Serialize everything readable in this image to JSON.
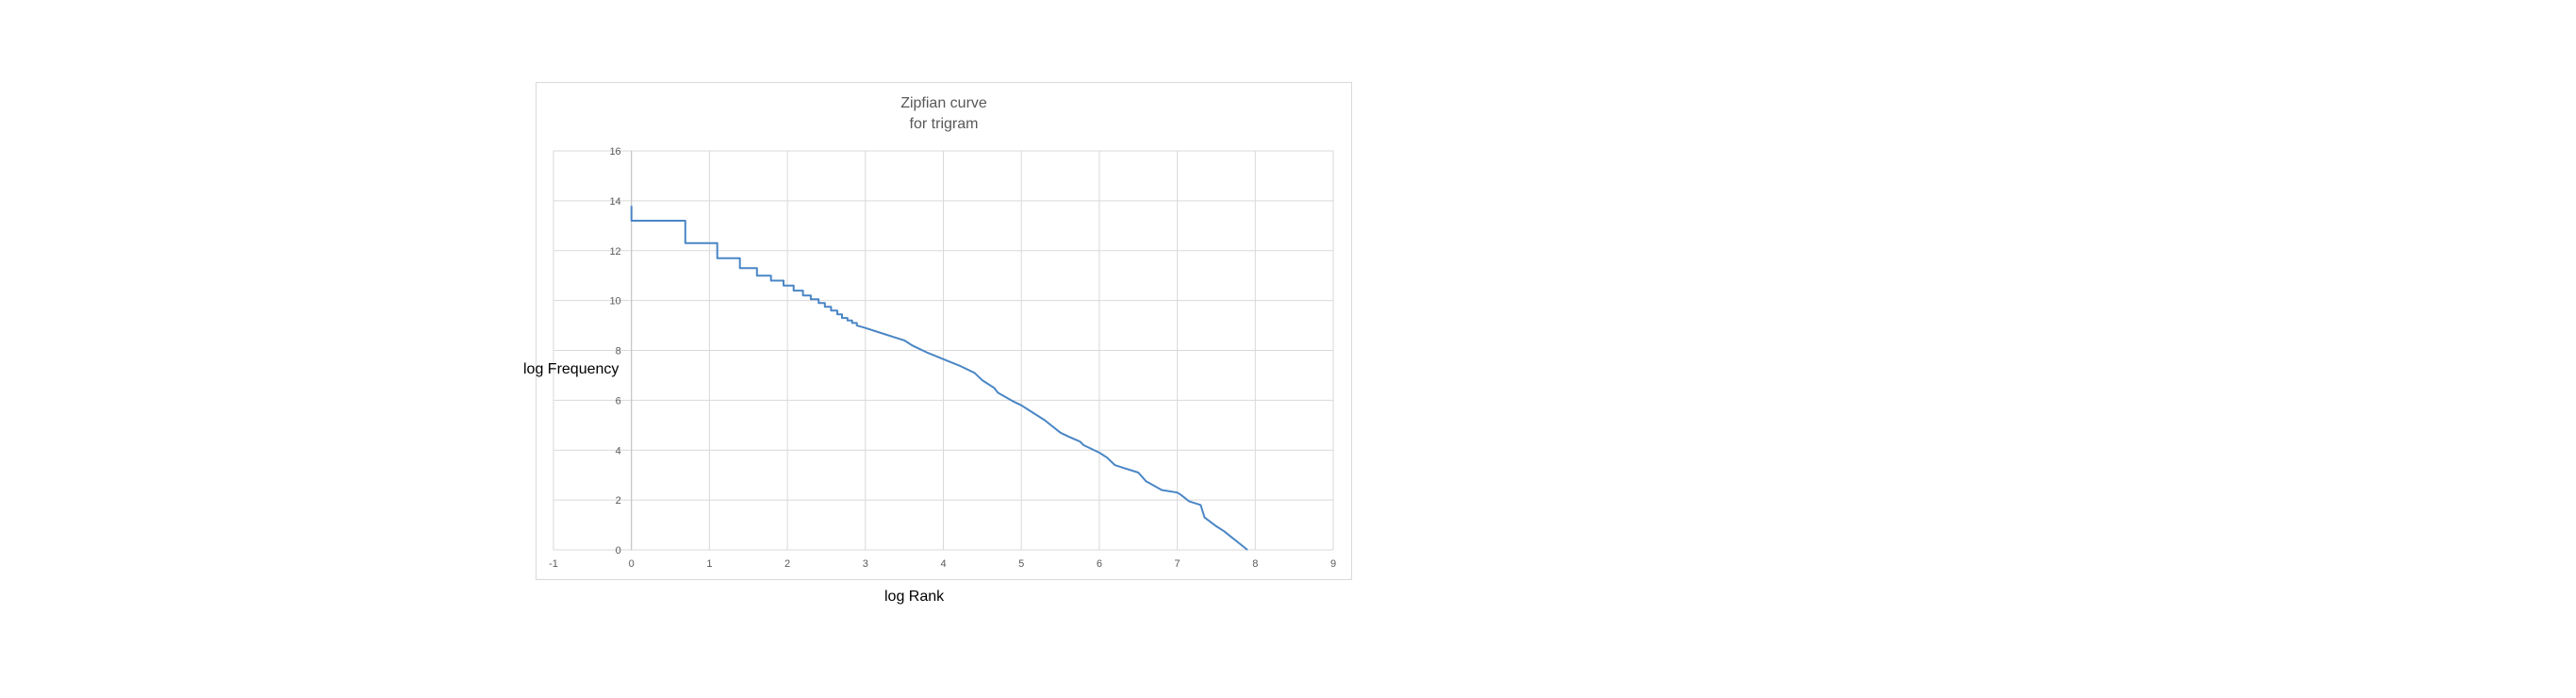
{
  "chart_data": {
    "type": "line",
    "title_lines": [
      "Zipfian curve",
      "for trigram"
    ],
    "xlabel": "log Rank",
    "ylabel": "log Frequency",
    "xlim": [
      -1,
      9
    ],
    "ylim": [
      0,
      16
    ],
    "x_ticks": [
      "-1",
      "0",
      "1",
      "2",
      "3",
      "4",
      "5",
      "6",
      "7",
      "8",
      "9"
    ],
    "y_ticks": [
      "0",
      "2",
      "4",
      "6",
      "8",
      "10",
      "12",
      "14",
      "16"
    ],
    "grid": true,
    "legend": "none",
    "line_color": "#4a86c5",
    "series": [
      {
        "x": [
          0,
          0,
          0.69,
          0.69,
          1.1,
          1.1,
          1.39,
          1.39,
          1.61,
          1.61,
          1.79,
          1.79,
          1.95,
          1.95,
          2.08,
          2.08,
          2.2,
          2.2,
          2.3,
          2.3,
          2.4,
          2.4,
          2.48,
          2.48,
          2.56,
          2.56,
          2.64,
          2.64,
          2.7,
          2.7,
          2.77,
          2.77,
          2.83,
          2.83,
          2.89,
          2.89,
          3.0,
          3.2,
          3.4,
          3.5,
          3.6,
          3.8,
          4.0,
          4.2,
          4.4,
          4.5,
          4.55,
          4.65,
          4.7,
          4.9,
          5.0,
          5.1,
          5.3,
          5.5,
          5.6,
          5.75,
          5.8,
          6.0,
          6.1,
          6.2,
          6.3,
          6.5,
          6.6,
          6.8,
          7.0,
          7.05,
          7.15,
          7.3,
          7.35,
          7.5,
          7.6,
          7.7,
          7.8,
          7.9
        ],
        "y": [
          13.8,
          13.2,
          13.2,
          12.3,
          12.3,
          11.7,
          11.7,
          11.3,
          11.3,
          11.0,
          11.0,
          10.8,
          10.8,
          10.6,
          10.6,
          10.4,
          10.4,
          10.2,
          10.2,
          10.05,
          10.05,
          9.9,
          9.9,
          9.75,
          9.75,
          9.6,
          9.6,
          9.45,
          9.45,
          9.3,
          9.3,
          9.2,
          9.2,
          9.1,
          9.1,
          9.0,
          8.9,
          8.7,
          8.5,
          8.4,
          8.2,
          7.9,
          7.65,
          7.4,
          7.1,
          6.8,
          6.7,
          6.5,
          6.3,
          5.95,
          5.8,
          5.6,
          5.2,
          4.7,
          4.55,
          4.35,
          4.2,
          3.9,
          3.7,
          3.4,
          3.3,
          3.1,
          2.75,
          2.4,
          2.3,
          2.2,
          1.95,
          1.8,
          1.3,
          0.95,
          0.75,
          0.5,
          0.25,
          0
        ]
      }
    ]
  }
}
